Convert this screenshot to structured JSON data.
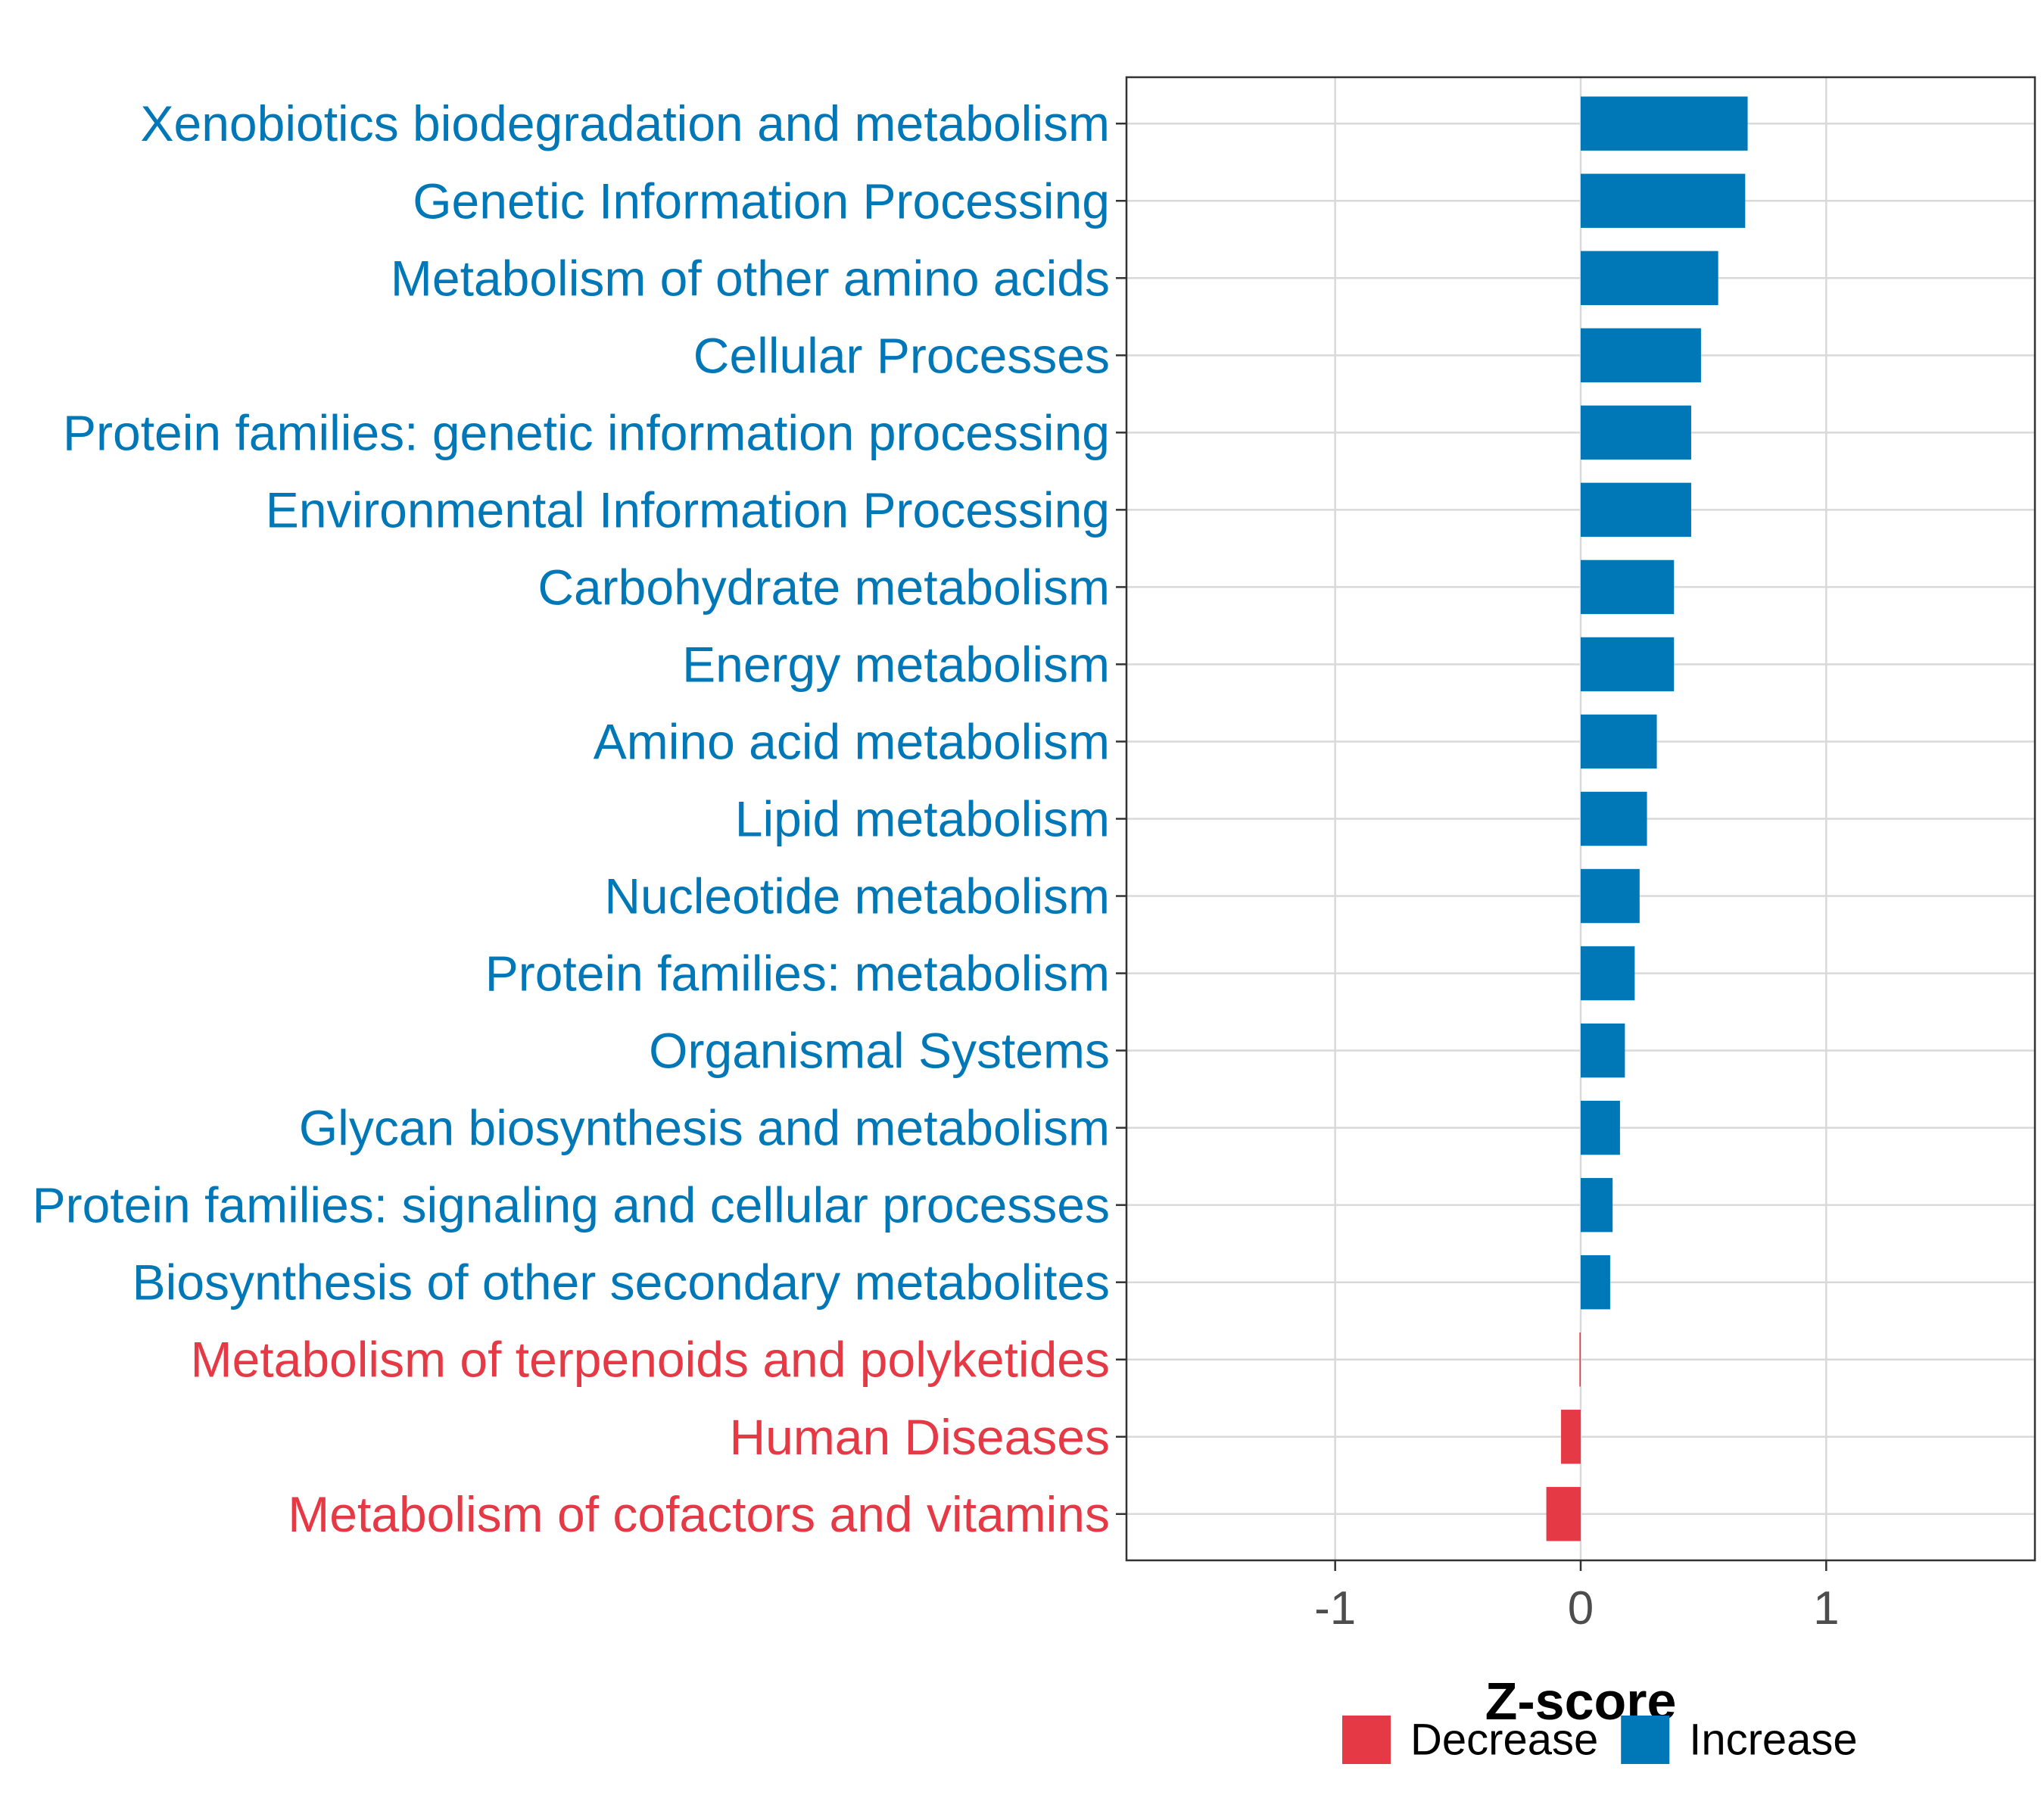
{
  "chart_data": {
    "type": "bar",
    "orientation": "horizontal",
    "xlabel": "Z-score",
    "ylabel": "",
    "xlim": [
      -1.85,
      1.85
    ],
    "xticks": [
      {
        "value": -1,
        "label": "-1"
      },
      {
        "value": 0,
        "label": "0"
      },
      {
        "value": 1,
        "label": "1"
      }
    ],
    "grid": true,
    "categories": [
      "Xenobiotics biodegradation and metabolism",
      "Genetic Information Processing",
      "Metabolism of other amino acids",
      "Cellular Processes",
      "Protein families: genetic information processing",
      "Environmental Information Processing",
      "Carbohydrate metabolism",
      "Energy metabolism",
      "Amino acid metabolism",
      "Lipid metabolism",
      "Nucleotide metabolism",
      "Protein families: metabolism",
      "Organismal Systems",
      "Glycan biosynthesis and metabolism",
      "Protein families: signaling and cellular processes",
      "Biosynthesis of other secondary metabolites",
      "Metabolism of terpenoids and polyketides",
      "Human Diseases",
      "Metabolism of cofactors and vitamins"
    ],
    "values": [
      0.68,
      0.67,
      0.56,
      0.49,
      0.45,
      0.45,
      0.38,
      0.38,
      0.31,
      0.27,
      0.24,
      0.22,
      0.18,
      0.16,
      0.13,
      0.12,
      -0.005,
      -0.08,
      -0.14
    ],
    "groups": [
      "Increase",
      "Increase",
      "Increase",
      "Increase",
      "Increase",
      "Increase",
      "Increase",
      "Increase",
      "Increase",
      "Increase",
      "Increase",
      "Increase",
      "Increase",
      "Increase",
      "Increase",
      "Increase",
      "Decrease",
      "Decrease",
      "Decrease"
    ],
    "legend": {
      "position": "bottom",
      "entries": [
        {
          "label": "Decrease",
          "color": "#e63946"
        },
        {
          "label": "Increase",
          "color": "#0077b6"
        }
      ]
    },
    "colors": {
      "Decrease": "#e63946",
      "Increase": "#0077b6"
    }
  }
}
